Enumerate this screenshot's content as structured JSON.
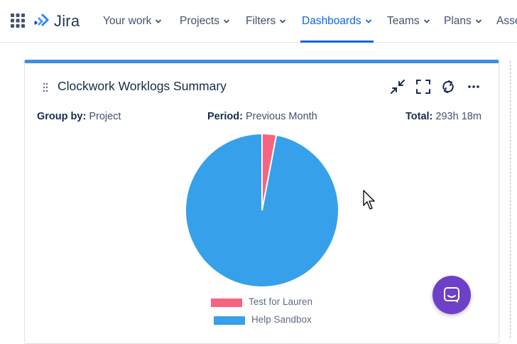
{
  "nav": {
    "logo": "Jira",
    "items": [
      {
        "label": "Your work",
        "active": false
      },
      {
        "label": "Projects",
        "active": false
      },
      {
        "label": "Filters",
        "active": false
      },
      {
        "label": "Dashboards",
        "active": true
      },
      {
        "label": "Teams",
        "active": false
      },
      {
        "label": "Plans",
        "active": false
      },
      {
        "label": "Asse",
        "active": false
      }
    ]
  },
  "gadget": {
    "title": "Clockwork Worklogs Summary",
    "group_by_label": "Group by:",
    "group_by_value": "Project",
    "period_label": "Period:",
    "period_value": "Previous Month",
    "total_label": "Total:",
    "total_value": "293h 18m",
    "tools": [
      "minimize-icon",
      "fullscreen-icon",
      "refresh-icon",
      "more-icon"
    ]
  },
  "chart_data": {
    "type": "pie",
    "categories": [
      "Test for Lauren",
      "Help Sandbox"
    ],
    "values": [
      3,
      97
    ],
    "colors": [
      "#f7647f",
      "#36a0ea"
    ],
    "legend": "bottom"
  },
  "colors": {
    "accent": "#0c66e4",
    "gadget_border": "#3b8ee8",
    "chat": "#6e40c9"
  }
}
